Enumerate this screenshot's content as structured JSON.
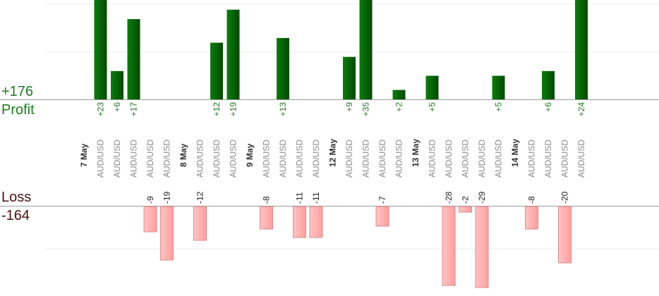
{
  "summary": {
    "profit_total": "+176",
    "profit_label": "Profit",
    "loss_label": "Loss",
    "loss_total": "-164"
  },
  "colors": {
    "profit_bar": "#0a6b0a",
    "profit_text": "#1e7a1e",
    "loss_bar": "#ffb6b6",
    "loss_bar_border": "#e08a8a",
    "loss_text": "#222222",
    "instrument_text": "#888888",
    "date_text": "#333333"
  },
  "chart_data": {
    "type": "bar",
    "instrument": "AUD/USD",
    "date_groups": [
      {
        "date": "7 May",
        "trades": [
          23,
          6,
          17,
          -9,
          -19
        ]
      },
      {
        "date": "8 May",
        "trades": [
          -12,
          12,
          19
        ]
      },
      {
        "date": "9 May",
        "trades": [
          -8,
          13,
          -11,
          -11
        ]
      },
      {
        "date": "12 May",
        "trades": [
          9,
          35,
          -7,
          2
        ]
      },
      {
        "date": "13 May",
        "trades": [
          5,
          -28,
          -2,
          -29,
          5
        ]
      },
      {
        "date": "14 May",
        "trades": [
          -8,
          6,
          -20,
          24
        ]
      }
    ],
    "profit_label_overrides": {
      "35": "+35"
    },
    "trade_labels": [
      "+23",
      "+6",
      "+17",
      "-9",
      "-19",
      "-12",
      "+12",
      "+19",
      "-8",
      "+13",
      "-11",
      "-11",
      "+9",
      "+35",
      "-7",
      "+2",
      "+5",
      "-28",
      "-2",
      "-29",
      "+5",
      "-8",
      "+6",
      "-20",
      "+24"
    ]
  }
}
